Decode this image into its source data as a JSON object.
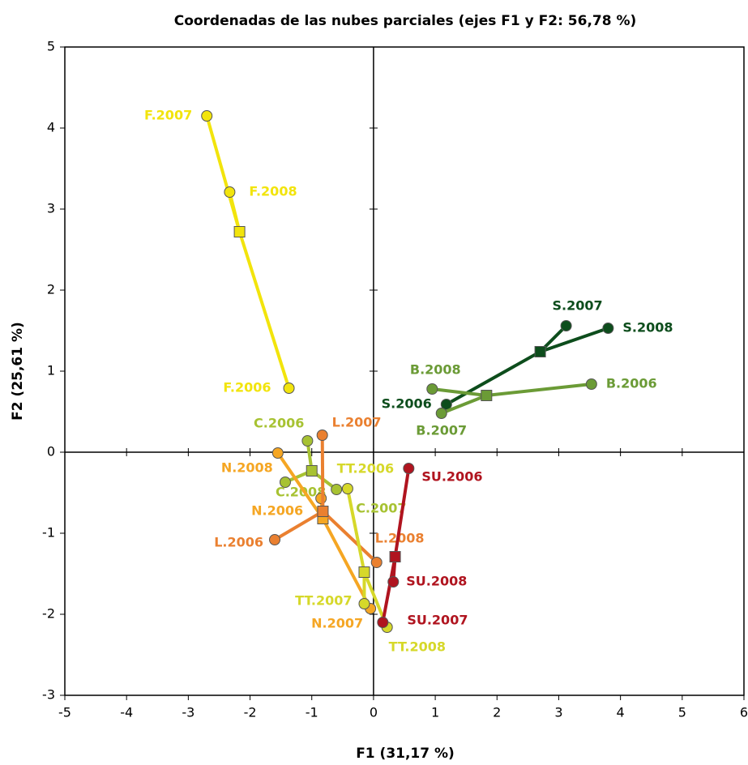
{
  "chart_data": {
    "type": "scatter",
    "title": "Coordenadas de las nubes parciales (ejes F1 y F2: 56,78 %)",
    "x_label": "F1 (31,17 %)",
    "y_label": "F2 (25,61 %)",
    "xlim": [
      -5,
      6
    ],
    "xticks": [
      -5,
      -4,
      -3,
      -2,
      -1,
      0,
      1,
      2,
      3,
      4,
      5,
      6
    ],
    "ylim": [
      -3,
      5
    ],
    "yticks": [
      -3,
      -2,
      -1,
      0,
      1,
      2,
      3,
      4,
      5
    ],
    "groups": [
      {
        "color": "#f2e40c",
        "center": {
          "x": -2.17,
          "y": 2.72
        },
        "points": [
          {
            "label": "F.2007",
            "x": -2.7,
            "y": 4.15
          },
          {
            "label": "F.2008",
            "x": -2.33,
            "y": 3.21
          },
          {
            "label": "F.2006",
            "x": -1.37,
            "y": 0.79
          }
        ]
      },
      {
        "color": "#0d4d1c",
        "center": {
          "x": 2.7,
          "y": 1.24
        },
        "points": [
          {
            "label": "S.2007",
            "x": 3.12,
            "y": 1.56
          },
          {
            "label": "S.2008",
            "x": 3.8,
            "y": 1.53
          },
          {
            "label": "S.2006",
            "x": 1.18,
            "y": 0.59
          }
        ]
      },
      {
        "color": "#6b9b36",
        "center": {
          "x": 1.83,
          "y": 0.7
        },
        "points": [
          {
            "label": "B.2008",
            "x": 0.95,
            "y": 0.78
          },
          {
            "label": "B.2006",
            "x": 3.53,
            "y": 0.84
          },
          {
            "label": "B.2007",
            "x": 1.1,
            "y": 0.48
          }
        ]
      },
      {
        "color": "#a7c232",
        "center": {
          "x": -1.0,
          "y": -0.23
        },
        "points": [
          {
            "label": "C.2006",
            "x": -1.07,
            "y": 0.14
          },
          {
            "label": "C.2008",
            "x": -1.43,
            "y": -0.37
          },
          {
            "label": "C.2007",
            "x": -0.6,
            "y": -0.46
          }
        ]
      },
      {
        "color": "#f5a623",
        "center": {
          "x": -0.82,
          "y": -0.82
        },
        "points": [
          {
            "label": "N.2008",
            "x": -1.55,
            "y": -0.01
          },
          {
            "label": "N.2006",
            "x": -0.85,
            "y": -0.57
          },
          {
            "label": "N.2007",
            "x": -0.05,
            "y": -1.93
          }
        ]
      },
      {
        "color": "#ea8030",
        "center": {
          "x": -0.82,
          "y": -0.73
        },
        "points": [
          {
            "label": "L.2007",
            "x": -0.83,
            "y": 0.21
          },
          {
            "label": "L.2006",
            "x": -1.6,
            "y": -1.08
          },
          {
            "label": "L.2008",
            "x": 0.05,
            "y": -1.36
          }
        ]
      },
      {
        "color": "#d6d82a",
        "center": {
          "x": -0.15,
          "y": -1.48
        },
        "points": [
          {
            "label": "TT.2006",
            "x": -0.42,
            "y": -0.45
          },
          {
            "label": "TT.2007",
            "x": -0.15,
            "y": -1.87
          },
          {
            "label": "TT.2008",
            "x": 0.22,
            "y": -2.16
          }
        ]
      },
      {
        "color": "#b0141f",
        "center": {
          "x": 0.35,
          "y": -1.29
        },
        "points": [
          {
            "label": "SU.2006",
            "x": 0.57,
            "y": -0.2
          },
          {
            "label": "SU.2008",
            "x": 0.32,
            "y": -1.6
          },
          {
            "label": "SU.2007",
            "x": 0.15,
            "y": -2.1
          }
        ]
      }
    ]
  }
}
